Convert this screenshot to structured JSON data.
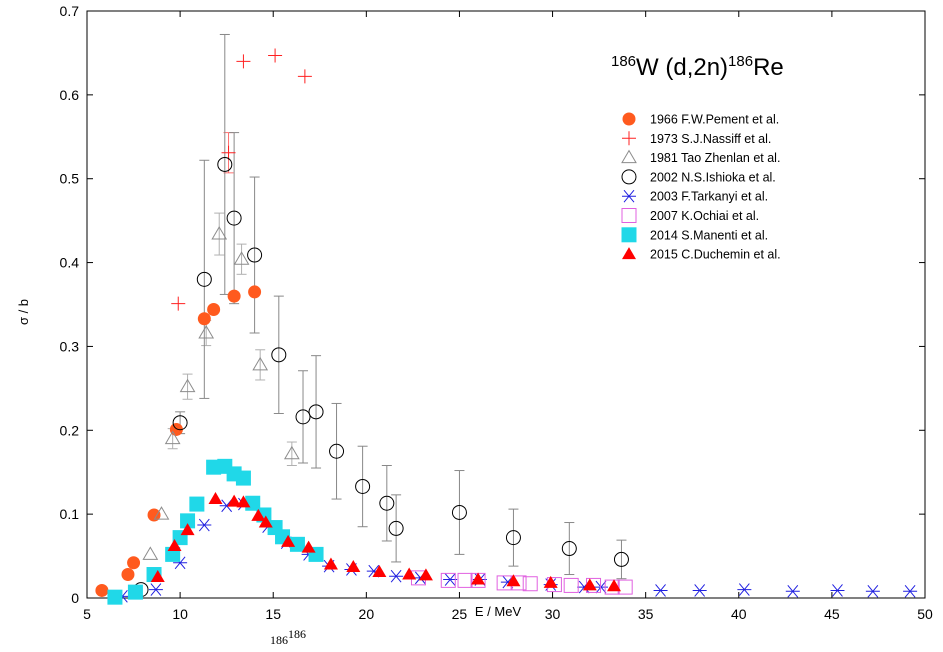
{
  "chart_data": {
    "type": "scatter",
    "title": {
      "pre_sup": "186",
      "main": "W (d,2n)",
      "post_sup": "186",
      "post_main": "Re"
    },
    "xlabel": "E / MeV",
    "ylabel": "σ / b",
    "xlim": [
      5,
      50
    ],
    "ylim": [
      0,
      0.7
    ],
    "x_ticks": [
      5,
      10,
      15,
      20,
      25,
      30,
      35,
      40,
      45,
      50
    ],
    "y_ticks": [
      0,
      0.1,
      0.2,
      0.3,
      0.4,
      0.5,
      0.6,
      0.7
    ],
    "y_tick_labels": [
      "0",
      "0.1",
      "0.2",
      "0.3",
      "0.4",
      "0.5",
      "0.6",
      "0.7"
    ],
    "grid": false,
    "legend_position": "top-right",
    "caption_fragment": {
      "sup1": "186",
      "sup2": "186"
    },
    "series": [
      {
        "name": "1966 F.W.Pement et al.",
        "marker": "filled-circle",
        "color": "#ff5a1e",
        "points": [
          [
            5.8,
            0.009
          ],
          [
            7.2,
            0.028
          ],
          [
            7.5,
            0.042
          ],
          [
            8.6,
            0.099
          ],
          [
            9.8,
            0.201
          ],
          [
            11.3,
            0.333
          ],
          [
            11.8,
            0.344
          ],
          [
            12.9,
            0.36
          ],
          [
            14.0,
            0.365
          ]
        ]
      },
      {
        "name": "1973 S.J.Nassiff et al.",
        "marker": "plus",
        "color": "#ff2020",
        "points": [
          [
            9.9,
            0.351
          ],
          [
            12.6,
            0.531
          ],
          [
            13.4,
            0.64
          ],
          [
            15.1,
            0.647
          ],
          [
            16.7,
            0.622
          ]
        ],
        "errors": [
          0,
          0.024,
          0,
          0,
          0
        ]
      },
      {
        "name": "1981 Tao Zhenlan et al.",
        "marker": "open-triangle",
        "color": "#8c8c8c",
        "points": [
          [
            8.4,
            0.052
          ],
          [
            9.0,
            0.1
          ],
          [
            9.6,
            0.19
          ],
          [
            10.4,
            0.252
          ],
          [
            11.4,
            0.316
          ],
          [
            12.1,
            0.434
          ],
          [
            13.3,
            0.404
          ],
          [
            14.3,
            0.278
          ],
          [
            16.0,
            0.172
          ]
        ],
        "errors": [
          0,
          0,
          0.012,
          0.015,
          0.015,
          0.025,
          0.018,
          0.018,
          0.014
        ]
      },
      {
        "name": "2002 N.S.Ishioka et al.",
        "marker": "open-circle",
        "color": "#000000",
        "points": [
          [
            7.9,
            0.01
          ],
          [
            10.0,
            0.209
          ],
          [
            11.3,
            0.38
          ],
          [
            12.4,
            0.517
          ],
          [
            12.9,
            0.453
          ],
          [
            14.0,
            0.409
          ],
          [
            15.3,
            0.29
          ],
          [
            16.6,
            0.216
          ],
          [
            17.3,
            0.222
          ],
          [
            18.4,
            0.175
          ],
          [
            19.8,
            0.133
          ],
          [
            21.1,
            0.113
          ],
          [
            21.6,
            0.083
          ],
          [
            25.0,
            0.102
          ],
          [
            27.9,
            0.072
          ],
          [
            30.9,
            0.059
          ],
          [
            33.7,
            0.046
          ]
        ],
        "errors": [
          0,
          0.013,
          0.142,
          0.155,
          0.102,
          0.093,
          0.07,
          0.055,
          0.067,
          0.057,
          0.048,
          0.045,
          0.04,
          0.05,
          0.034,
          0.031,
          0.023
        ]
      },
      {
        "name": "2003 F.Tarkanyi et al.",
        "marker": "asterisk",
        "color": "#2020e0",
        "points": [
          [
            6.9,
            0.002
          ],
          [
            8.7,
            0.01
          ],
          [
            10.0,
            0.042
          ],
          [
            11.3,
            0.087
          ],
          [
            12.5,
            0.11
          ],
          [
            13.4,
            0.112
          ],
          [
            14.7,
            0.085
          ],
          [
            15.7,
            0.066
          ],
          [
            16.9,
            0.052
          ],
          [
            18.0,
            0.038
          ],
          [
            19.2,
            0.034
          ],
          [
            20.4,
            0.032
          ],
          [
            21.6,
            0.026
          ],
          [
            22.9,
            0.024
          ],
          [
            24.5,
            0.022
          ],
          [
            26.1,
            0.022
          ],
          [
            27.6,
            0.019
          ],
          [
            29.9,
            0.016
          ],
          [
            31.7,
            0.013
          ],
          [
            32.6,
            0.013
          ],
          [
            35.8,
            0.009
          ],
          [
            37.9,
            0.009
          ],
          [
            40.3,
            0.01
          ],
          [
            42.9,
            0.008
          ],
          [
            45.3,
            0.009
          ],
          [
            47.2,
            0.008
          ],
          [
            49.2,
            0.008
          ]
        ]
      },
      {
        "name": "2007 K.Ochiai et al.",
        "marker": "open-square",
        "color": "#e060e0",
        "points": [
          [
            22.8,
            0.024
          ],
          [
            24.4,
            0.021
          ],
          [
            25.3,
            0.021
          ],
          [
            26.0,
            0.021
          ],
          [
            27.4,
            0.018
          ],
          [
            28.2,
            0.018
          ],
          [
            28.8,
            0.017
          ],
          [
            30.1,
            0.016
          ],
          [
            31.0,
            0.015
          ],
          [
            32.2,
            0.015
          ],
          [
            33.2,
            0.013
          ],
          [
            33.9,
            0.013
          ]
        ]
      },
      {
        "name": "2014 S.Manenti et al.",
        "marker": "filled-square",
        "color": "#20d8e8",
        "points": [
          [
            6.5,
            0.001
          ],
          [
            7.6,
            0.007
          ],
          [
            8.6,
            0.028
          ],
          [
            9.6,
            0.052
          ],
          [
            10.0,
            0.072
          ],
          [
            10.4,
            0.092
          ],
          [
            10.9,
            0.112
          ],
          [
            11.8,
            0.156
          ],
          [
            12.4,
            0.157
          ],
          [
            12.9,
            0.148
          ],
          [
            13.4,
            0.143
          ],
          [
            13.9,
            0.113
          ],
          [
            14.5,
            0.099
          ],
          [
            15.1,
            0.084
          ],
          [
            15.5,
            0.073
          ],
          [
            16.3,
            0.064
          ],
          [
            17.3,
            0.052
          ]
        ]
      },
      {
        "name": "2015 C.Duchemin et al.",
        "marker": "filled-triangle",
        "color": "#ff0000",
        "points": [
          [
            8.8,
            0.025
          ],
          [
            9.7,
            0.062
          ],
          [
            10.4,
            0.081
          ],
          [
            11.9,
            0.118
          ],
          [
            12.9,
            0.115
          ],
          [
            13.4,
            0.114
          ],
          [
            14.2,
            0.098
          ],
          [
            14.6,
            0.09
          ],
          [
            15.8,
            0.067
          ],
          [
            16.9,
            0.06
          ],
          [
            18.1,
            0.04
          ],
          [
            19.3,
            0.037
          ],
          [
            20.7,
            0.031
          ],
          [
            22.3,
            0.028
          ],
          [
            23.2,
            0.027
          ],
          [
            26.0,
            0.022
          ],
          [
            27.9,
            0.02
          ],
          [
            29.9,
            0.018
          ],
          [
            32.0,
            0.015
          ],
          [
            33.3,
            0.014
          ]
        ]
      }
    ]
  }
}
